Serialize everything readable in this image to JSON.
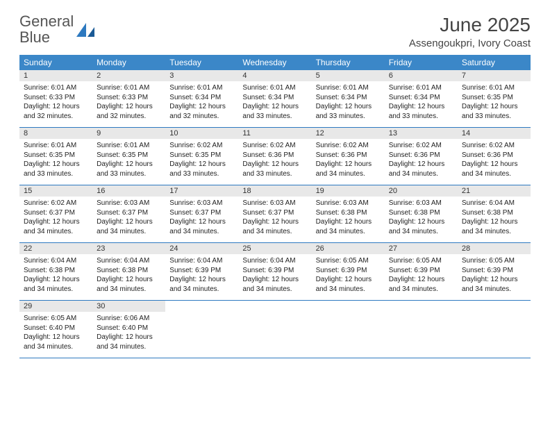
{
  "logo": {
    "text1": "General",
    "text2": "Blue"
  },
  "title": "June 2025",
  "location": "Assengoukpri, Ivory Coast",
  "colors": {
    "header_bg": "#3b87c8",
    "header_text": "#ffffff",
    "daynum_bg": "#e8e8e8",
    "row_border": "#2d79c0",
    "logo_blue": "#2d79c0",
    "text": "#222222"
  },
  "weekdays": [
    "Sunday",
    "Monday",
    "Tuesday",
    "Wednesday",
    "Thursday",
    "Friday",
    "Saturday"
  ],
  "weeks": [
    [
      {
        "n": "1",
        "sunrise": "6:01 AM",
        "sunset": "6:33 PM",
        "dl": "12 hours and 32 minutes."
      },
      {
        "n": "2",
        "sunrise": "6:01 AM",
        "sunset": "6:33 PM",
        "dl": "12 hours and 32 minutes."
      },
      {
        "n": "3",
        "sunrise": "6:01 AM",
        "sunset": "6:34 PM",
        "dl": "12 hours and 32 minutes."
      },
      {
        "n": "4",
        "sunrise": "6:01 AM",
        "sunset": "6:34 PM",
        "dl": "12 hours and 33 minutes."
      },
      {
        "n": "5",
        "sunrise": "6:01 AM",
        "sunset": "6:34 PM",
        "dl": "12 hours and 33 minutes."
      },
      {
        "n": "6",
        "sunrise": "6:01 AM",
        "sunset": "6:34 PM",
        "dl": "12 hours and 33 minutes."
      },
      {
        "n": "7",
        "sunrise": "6:01 AM",
        "sunset": "6:35 PM",
        "dl": "12 hours and 33 minutes."
      }
    ],
    [
      {
        "n": "8",
        "sunrise": "6:01 AM",
        "sunset": "6:35 PM",
        "dl": "12 hours and 33 minutes."
      },
      {
        "n": "9",
        "sunrise": "6:01 AM",
        "sunset": "6:35 PM",
        "dl": "12 hours and 33 minutes."
      },
      {
        "n": "10",
        "sunrise": "6:02 AM",
        "sunset": "6:35 PM",
        "dl": "12 hours and 33 minutes."
      },
      {
        "n": "11",
        "sunrise": "6:02 AM",
        "sunset": "6:36 PM",
        "dl": "12 hours and 33 minutes."
      },
      {
        "n": "12",
        "sunrise": "6:02 AM",
        "sunset": "6:36 PM",
        "dl": "12 hours and 34 minutes."
      },
      {
        "n": "13",
        "sunrise": "6:02 AM",
        "sunset": "6:36 PM",
        "dl": "12 hours and 34 minutes."
      },
      {
        "n": "14",
        "sunrise": "6:02 AM",
        "sunset": "6:36 PM",
        "dl": "12 hours and 34 minutes."
      }
    ],
    [
      {
        "n": "15",
        "sunrise": "6:02 AM",
        "sunset": "6:37 PM",
        "dl": "12 hours and 34 minutes."
      },
      {
        "n": "16",
        "sunrise": "6:03 AM",
        "sunset": "6:37 PM",
        "dl": "12 hours and 34 minutes."
      },
      {
        "n": "17",
        "sunrise": "6:03 AM",
        "sunset": "6:37 PM",
        "dl": "12 hours and 34 minutes."
      },
      {
        "n": "18",
        "sunrise": "6:03 AM",
        "sunset": "6:37 PM",
        "dl": "12 hours and 34 minutes."
      },
      {
        "n": "19",
        "sunrise": "6:03 AM",
        "sunset": "6:38 PM",
        "dl": "12 hours and 34 minutes."
      },
      {
        "n": "20",
        "sunrise": "6:03 AM",
        "sunset": "6:38 PM",
        "dl": "12 hours and 34 minutes."
      },
      {
        "n": "21",
        "sunrise": "6:04 AM",
        "sunset": "6:38 PM",
        "dl": "12 hours and 34 minutes."
      }
    ],
    [
      {
        "n": "22",
        "sunrise": "6:04 AM",
        "sunset": "6:38 PM",
        "dl": "12 hours and 34 minutes."
      },
      {
        "n": "23",
        "sunrise": "6:04 AM",
        "sunset": "6:38 PM",
        "dl": "12 hours and 34 minutes."
      },
      {
        "n": "24",
        "sunrise": "6:04 AM",
        "sunset": "6:39 PM",
        "dl": "12 hours and 34 minutes."
      },
      {
        "n": "25",
        "sunrise": "6:04 AM",
        "sunset": "6:39 PM",
        "dl": "12 hours and 34 minutes."
      },
      {
        "n": "26",
        "sunrise": "6:05 AM",
        "sunset": "6:39 PM",
        "dl": "12 hours and 34 minutes."
      },
      {
        "n": "27",
        "sunrise": "6:05 AM",
        "sunset": "6:39 PM",
        "dl": "12 hours and 34 minutes."
      },
      {
        "n": "28",
        "sunrise": "6:05 AM",
        "sunset": "6:39 PM",
        "dl": "12 hours and 34 minutes."
      }
    ],
    [
      {
        "n": "29",
        "sunrise": "6:05 AM",
        "sunset": "6:40 PM",
        "dl": "12 hours and 34 minutes."
      },
      {
        "n": "30",
        "sunrise": "6:06 AM",
        "sunset": "6:40 PM",
        "dl": "12 hours and 34 minutes."
      },
      null,
      null,
      null,
      null,
      null
    ]
  ],
  "labels": {
    "sunrise": "Sunrise:",
    "sunset": "Sunset:",
    "daylight": "Daylight:"
  }
}
